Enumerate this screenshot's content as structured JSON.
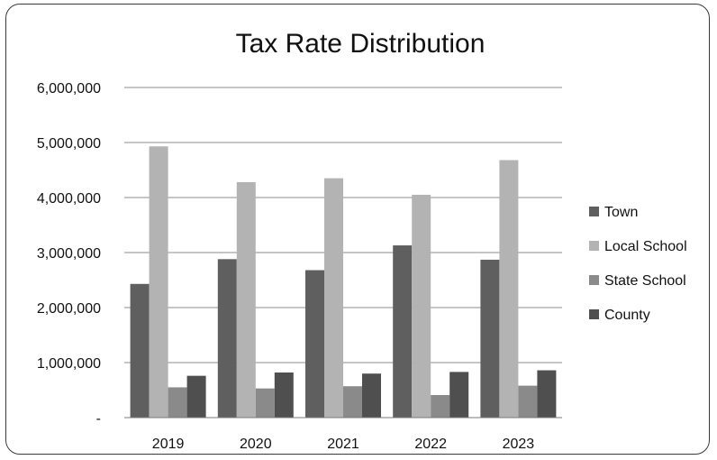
{
  "chart_data": {
    "type": "bar",
    "title": "Tax Rate Distribution",
    "xlabel": "",
    "ylabel": "",
    "categories": [
      "2019",
      "2020",
      "2021",
      "2022",
      "2023"
    ],
    "series": [
      {
        "name": "Town",
        "color": "#5f5f5f",
        "values": [
          2430000,
          2880000,
          2680000,
          3130000,
          2870000
        ]
      },
      {
        "name": "Local School",
        "color": "#b3b3b3",
        "values": [
          4930000,
          4280000,
          4350000,
          4050000,
          4680000
        ]
      },
      {
        "name": "State School",
        "color": "#8a8a8a",
        "values": [
          550000,
          530000,
          570000,
          410000,
          580000
        ]
      },
      {
        "name": "County",
        "color": "#4f4f4f",
        "values": [
          760000,
          820000,
          800000,
          830000,
          860000
        ]
      }
    ],
    "ylim": [
      0,
      6000000
    ],
    "yticks": [
      0,
      1000000,
      2000000,
      3000000,
      4000000,
      5000000,
      6000000
    ],
    "ytick_labels": [
      "-",
      "1,000,000",
      "2,000,000",
      "3,000,000",
      "4,000,000",
      "5,000,000",
      "6,000,000"
    ],
    "grid": true,
    "legend_position": "right"
  }
}
